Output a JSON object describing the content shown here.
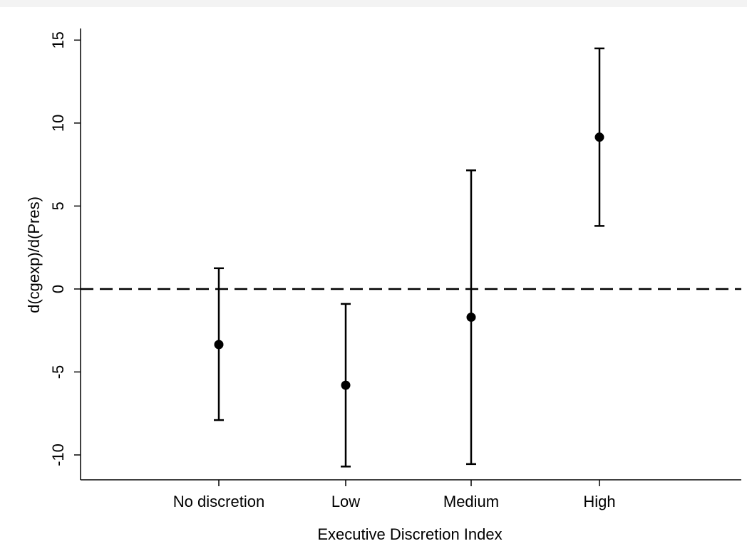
{
  "chart_data": {
    "type": "scatter",
    "title": "",
    "xlabel": "Executive Discretion Index",
    "ylabel": "d(cgexp)/d(Pres)",
    "categories": [
      "No discretion",
      "Low",
      "Medium",
      "High"
    ],
    "series": [
      {
        "estimate": [
          -3.35,
          -5.8,
          -1.7,
          9.15
        ],
        "lower": [
          -7.9,
          -10.7,
          -10.55,
          3.8
        ],
        "upper": [
          1.25,
          -0.9,
          7.15,
          14.5
        ]
      }
    ],
    "ylim": [
      -11.5,
      15.7
    ],
    "yticks": [
      15,
      10,
      5,
      0,
      -5,
      -10
    ],
    "ytick_labels": [
      "15",
      "10",
      "5",
      "0",
      "-5",
      "-10"
    ],
    "reference_line": {
      "y": 0,
      "style": "dashed"
    },
    "grid": false,
    "legend": "none"
  }
}
